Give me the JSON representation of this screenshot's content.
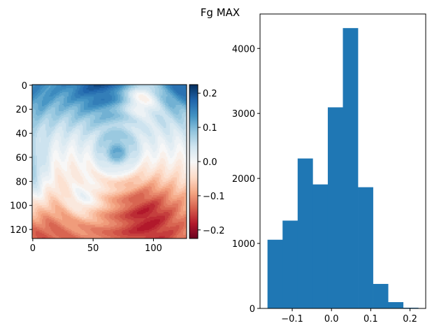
{
  "chart_data": [
    {
      "type": "heatmap",
      "title": "",
      "xlabel": "",
      "ylabel": "",
      "shape": [
        128,
        128
      ],
      "xticks": [
        "0",
        "50",
        "100"
      ],
      "xtick_values": [
        0,
        50,
        100
      ],
      "yticks": [
        "0",
        "20",
        "40",
        "60",
        "80",
        "100",
        "120"
      ],
      "ytick_values": [
        0,
        20,
        40,
        60,
        80,
        100,
        120
      ],
      "colormap": "RdBu",
      "clim": [
        -0.225,
        0.225
      ],
      "colorbar_ticks": [
        "0.2",
        "0.1",
        "0.0",
        "−0.1",
        "−0.2"
      ],
      "colorbar_tick_values": [
        0.2,
        0.1,
        0.0,
        -0.1,
        -0.2
      ]
    },
    {
      "type": "bar",
      "subtype": "histogram",
      "bin_edges": [
        -0.163,
        -0.1246,
        -0.0862,
        -0.0478,
        -0.0094,
        0.029,
        0.0674,
        0.1058,
        0.1442,
        0.1826,
        0.221
      ],
      "values": [
        1057,
        1351,
        2307,
        1908,
        3094,
        4313,
        1865,
        377,
        97,
        11
      ],
      "xlim": [
        -0.182,
        0.24
      ],
      "ylim": [
        0,
        4530
      ],
      "xticks": [
        "−0.1",
        "0.0",
        "0.1",
        "0.2"
      ],
      "xtick_values": [
        -0.1,
        0.0,
        0.1,
        0.2
      ],
      "yticks": [
        "0",
        "1000",
        "2000",
        "3000",
        "4000"
      ],
      "ytick_values": [
        0,
        1000,
        2000,
        3000,
        4000
      ],
      "color": "#1f77b4",
      "xlabel": "",
      "ylabel": ""
    }
  ],
  "figure": {
    "suptitle": "Fg MAX"
  }
}
